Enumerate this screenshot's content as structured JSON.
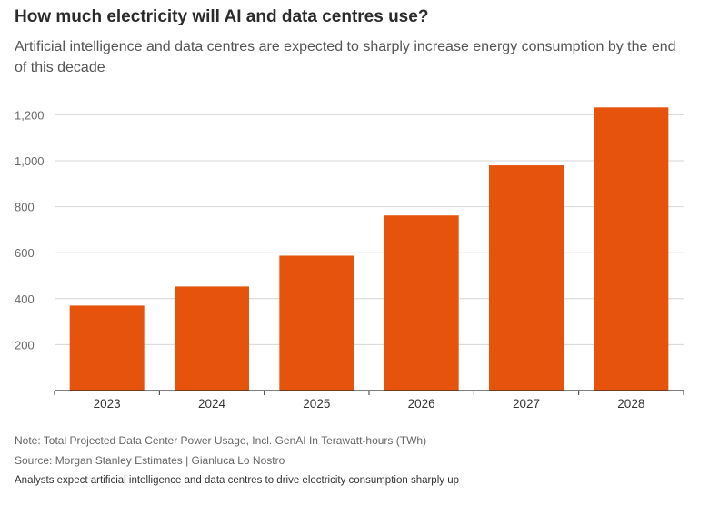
{
  "chart_data": {
    "type": "bar",
    "title": "How much electricity will AI and data centres use?",
    "subtitle": "Artificial intelligence and data centres are expected to sharply increase energy consumption by the end of this decade",
    "categories": [
      "2023",
      "2024",
      "2025",
      "2026",
      "2027",
      "2028"
    ],
    "values": [
      370,
      453,
      587,
      762,
      980,
      1232
    ],
    "ylim": [
      0,
      1300
    ],
    "yticks": [
      200,
      400,
      600,
      800,
      1000,
      1200
    ],
    "ytick_labels": [
      "200",
      "400",
      "600",
      "800",
      "1,000",
      "1,200"
    ],
    "xlabel": "",
    "ylabel": "",
    "grid": true,
    "bar_color": "#e5530d"
  },
  "footer": {
    "note": "Note: Total Projected Data Center Power Usage, Incl. GenAI In Terawatt-hours (TWh)",
    "source": "Source: Morgan Stanley Estimates | Gianluca Lo Nostro",
    "caption": "Analysts expect artificial intelligence and data centres to drive electricity consumption sharply up"
  }
}
